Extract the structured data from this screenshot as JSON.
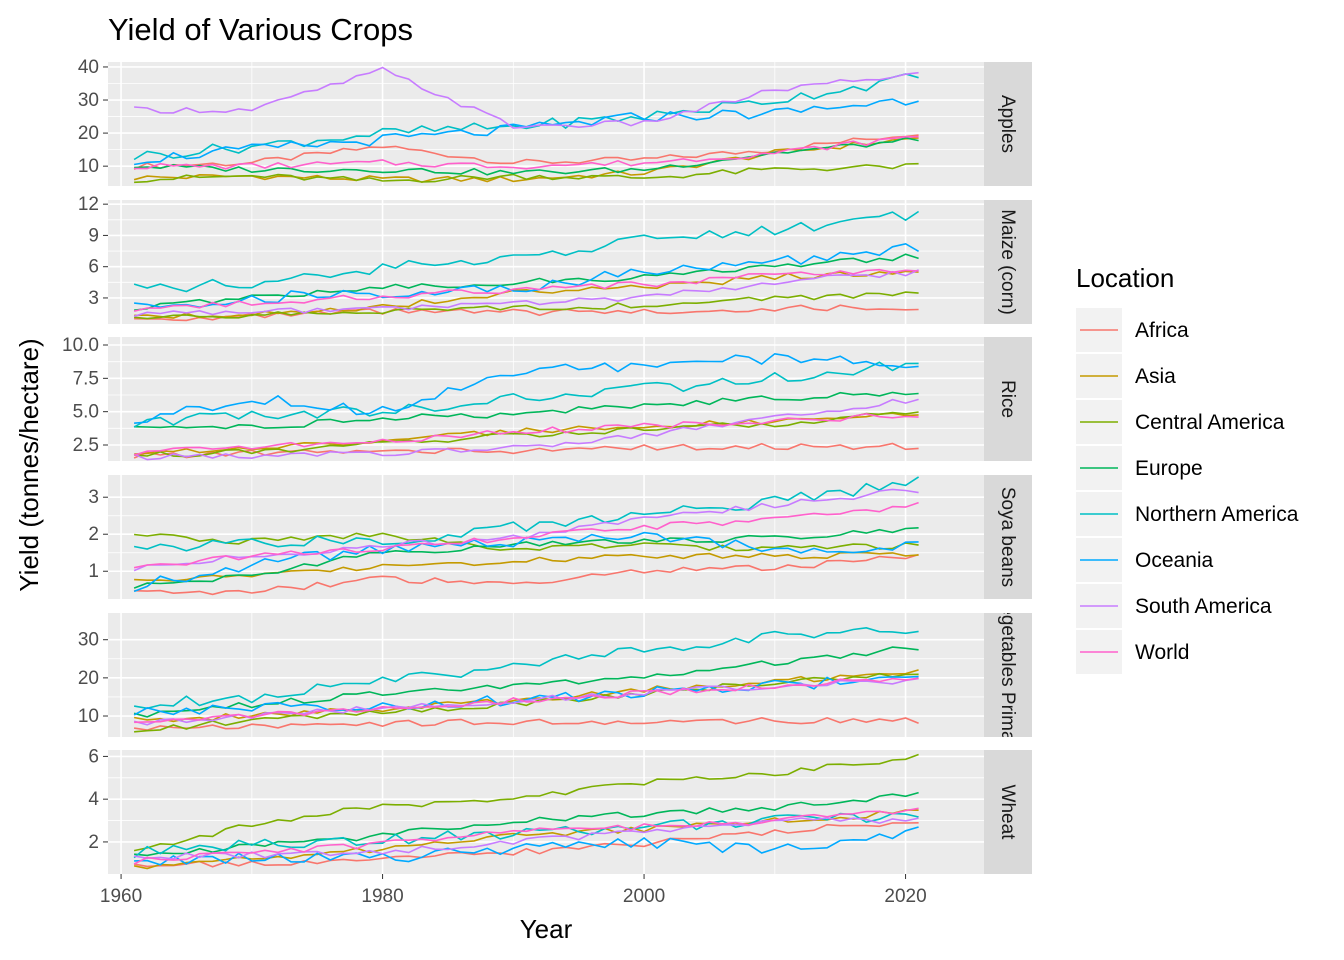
{
  "chart_data": {
    "type": "line",
    "title": "Yield of Various Crops",
    "xlabel": "Year",
    "ylabel": "Yield (tonnes/hectare)",
    "xlim": [
      1959,
      2026
    ],
    "x_ticks": [
      1960,
      1980,
      2000,
      2020
    ],
    "legend": {
      "title": "Location",
      "placement": "right"
    },
    "series": [
      {
        "name": "Africa",
        "color": "#F8766D"
      },
      {
        "name": "Asia",
        "color": "#C49A00"
      },
      {
        "name": "Central America",
        "color": "#7CAE00"
      },
      {
        "name": "Europe",
        "color": "#00B65A"
      },
      {
        "name": "Northern America",
        "color": "#00BFC4"
      },
      {
        "name": "Oceania",
        "color": "#00A9FF"
      },
      {
        "name": "South America",
        "color": "#C77CFF"
      },
      {
        "name": "World",
        "color": "#FF61CC"
      }
    ],
    "facets": [
      {
        "label": "Apples",
        "ylim": [
          4,
          41.5
        ],
        "y_ticks": [
          10,
          20,
          30,
          40
        ],
        "x": [
          1961,
          1970,
          1980,
          1990,
          2000,
          2010,
          2021
        ],
        "values": {
          "Africa": [
            10,
            11,
            16,
            11,
            12,
            15,
            20
          ],
          "Asia": [
            6.5,
            7,
            6,
            6,
            8,
            14,
            18.5
          ],
          "Central America": [
            6,
            7,
            5.5,
            7,
            6.5,
            9,
            10
          ],
          "Europe": [
            10,
            9,
            9,
            8,
            9,
            14,
            18
          ],
          "Northern America": [
            13,
            16,
            20,
            22,
            25,
            30,
            37
          ],
          "Oceania": [
            12,
            15,
            18,
            21,
            25,
            26,
            30.5
          ],
          "South America": [
            27,
            27,
            39,
            22,
            23,
            33,
            38
          ],
          "World": [
            10,
            10,
            11,
            10,
            11,
            14,
            19
          ]
        }
      },
      {
        "label": "Maize (corn)",
        "ylim": [
          0.5,
          12.4
        ],
        "y_ticks": [
          3,
          6,
          9,
          12
        ],
        "x": [
          1961,
          1970,
          1980,
          1990,
          2000,
          2010,
          2021
        ],
        "values": {
          "Africa": [
            1,
            1.2,
            1.7,
            1.6,
            1.7,
            2,
            2.1
          ],
          "Asia": [
            1.2,
            1.5,
            2.2,
            3.5,
            4,
            5,
            5.6
          ],
          "Central America": [
            1,
            1.3,
            1.8,
            2,
            2.3,
            3,
            3.5
          ],
          "Europe": [
            2,
            3,
            4,
            4.5,
            5,
            6,
            7
          ],
          "Northern America": [
            3.8,
            4.5,
            5.8,
            7,
            8.5,
            9.5,
            11
          ],
          "Oceania": [
            2,
            3,
            3.5,
            4,
            5.5,
            6.5,
            7.8
          ],
          "South America": [
            1.5,
            1.7,
            1.9,
            2.5,
            3,
            4.5,
            5.5
          ],
          "World": [
            2,
            2.5,
            3.2,
            3.7,
            4.3,
            5.2,
            5.8
          ]
        }
      },
      {
        "label": "Rice",
        "ylim": [
          1.3,
          10.6
        ],
        "y_ticks": [
          2.5,
          5.0,
          7.5,
          10.0
        ],
        "x": [
          1961,
          1970,
          1980,
          1990,
          2000,
          2010,
          2021
        ],
        "values": {
          "Africa": [
            1.7,
            1.9,
            2,
            2.1,
            2.3,
            2.4,
            2.4
          ],
          "Asia": [
            1.8,
            2.3,
            2.8,
            3.5,
            3.9,
            4.3,
            4.9
          ],
          "Central America": [
            1.7,
            2,
            2.6,
            3.2,
            3.7,
            4.1,
            5
          ],
          "Europe": [
            4,
            3.8,
            4.5,
            4.8,
            5.5,
            6,
            6.5
          ],
          "Northern America": [
            4.2,
            4.8,
            5,
            6,
            6.7,
            7.5,
            8.6
          ],
          "Oceania": [
            4.3,
            6,
            5,
            8,
            8.5,
            9,
            8.5
          ],
          "South America": [
            1.6,
            1.7,
            1.8,
            2.3,
            3.3,
            4.5,
            6
          ],
          "World": [
            1.9,
            2.3,
            2.8,
            3.5,
            3.9,
            4.3,
            4.8
          ]
        }
      },
      {
        "label": "Soya beans",
        "ylim": [
          0.25,
          3.6
        ],
        "y_ticks": [
          1,
          2,
          3
        ],
        "x": [
          1961,
          1970,
          1980,
          1990,
          2000,
          2010,
          2021
        ],
        "values": {
          "Africa": [
            0.4,
            0.45,
            0.8,
            0.65,
            1.0,
            1.1,
            1.4
          ],
          "Asia": [
            0.7,
            0.9,
            1.1,
            1.3,
            1.4,
            1.4,
            1.5
          ],
          "Central America": [
            2,
            1.8,
            2,
            1.6,
            1.7,
            1.6,
            1.7
          ],
          "Europe": [
            0.6,
            0.9,
            1.5,
            1.7,
            1.8,
            1.9,
            2.1
          ],
          "Northern America": [
            1.6,
            1.8,
            1.8,
            2.2,
            2.5,
            2.9,
            3.4
          ],
          "Oceania": [
            0.6,
            1.2,
            1.6,
            1.8,
            2.0,
            1.6,
            1.7
          ],
          "South America": [
            1.1,
            1.4,
            1.7,
            1.9,
            2.4,
            2.8,
            3.2
          ],
          "World": [
            1.1,
            1.4,
            1.6,
            1.9,
            2.2,
            2.4,
            2.8
          ]
        }
      },
      {
        "label": "Vegetables Primary",
        "ylim": [
          4.5,
          37
        ],
        "y_ticks": [
          10,
          20,
          30
        ],
        "x": [
          1961,
          1970,
          1980,
          1990,
          2000,
          2010,
          2021
        ],
        "values": {
          "Africa": [
            7,
            7.5,
            8,
            8.5,
            8.5,
            8.8,
            8.8
          ],
          "Asia": [
            9,
            10,
            12,
            14,
            17,
            19,
            22
          ],
          "Central America": [
            6,
            9,
            11,
            13,
            16,
            19,
            21
          ],
          "Europe": [
            10,
            13,
            16,
            18,
            20,
            24,
            28
          ],
          "Northern America": [
            13,
            15,
            19,
            23,
            27,
            31,
            33
          ],
          "Oceania": [
            11,
            12,
            13,
            14,
            16,
            18,
            20
          ],
          "South America": [
            8,
            10,
            12,
            14,
            16,
            18,
            19.5
          ],
          "World": [
            9,
            10,
            12,
            14,
            16,
            18,
            20
          ]
        }
      },
      {
        "label": "Wheat",
        "ylim": [
          0.5,
          6.3
        ],
        "y_ticks": [
          2,
          4,
          6
        ],
        "x": [
          1961,
          1970,
          1980,
          1990,
          2000,
          2010,
          2021
        ],
        "values": {
          "Africa": [
            0.9,
            1.0,
            1.2,
            1.5,
            1.9,
            2.5,
            3.0
          ],
          "Asia": [
            0.8,
            1.2,
            1.7,
            2.3,
            2.6,
            3.0,
            3.4
          ],
          "Central America": [
            1.6,
            2.8,
            3.7,
            4.0,
            4.8,
            5.2,
            6.0
          ],
          "Europe": [
            1.3,
            1.8,
            2.3,
            3.0,
            3.3,
            3.6,
            4.2
          ],
          "Northern America": [
            1.5,
            1.9,
            2.1,
            2.4,
            2.7,
            3.0,
            3.2
          ],
          "Oceania": [
            1.1,
            1.3,
            1.2,
            1.7,
            2.0,
            1.6,
            2.5
          ],
          "South America": [
            1.3,
            1.4,
            1.5,
            2.0,
            2.5,
            3.0,
            3.0
          ],
          "World": [
            1.1,
            1.5,
            1.9,
            2.5,
            2.7,
            3.0,
            3.5
          ]
        }
      }
    ]
  }
}
